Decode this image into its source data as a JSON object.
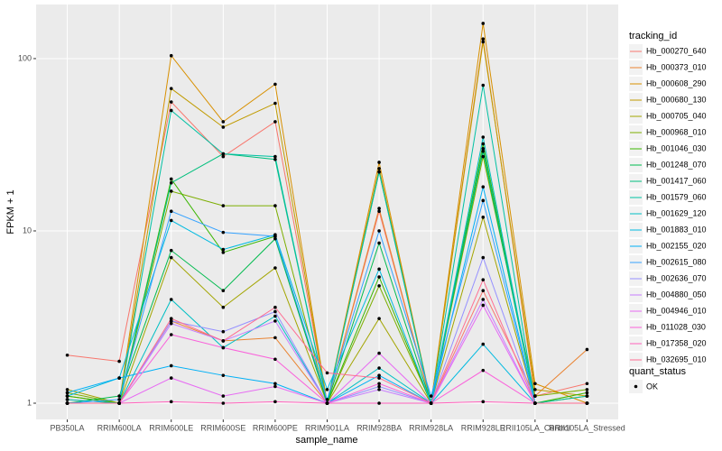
{
  "chart_data": {
    "type": "line",
    "x_label": "sample_name",
    "y_label": "FPKM + 1",
    "log_y": true,
    "grid": true,
    "legend_title": "tracking_id",
    "point_color": "#000000",
    "point_legend": {
      "title": "quant_status",
      "label": "OK"
    },
    "categories": [
      "PB350LA",
      "RRIM600LA",
      "RRIM600LE",
      "RRIM600SE",
      "RRIM600PE",
      "RRIM901LA",
      "RRIM928BA",
      "RRIM928LA",
      "RRIM928LE",
      "RRII105LA_Control",
      "RRII105LA_Stressed"
    ],
    "ylim": [
      0.805,
      206
    ],
    "yticks": [
      1,
      10,
      100
    ],
    "series": [
      {
        "name": "Hb_000270_640",
        "color": "#F8766D",
        "values": [
          1.9,
          1.75,
          56,
          27,
          43,
          1.0,
          13,
          1.0,
          4.5,
          1.1,
          1.3
        ]
      },
      {
        "name": "Hb_000373_010",
        "color": "#EA8331",
        "values": [
          1.05,
          1.0,
          3.0,
          2.3,
          2.4,
          1.0,
          13.5,
          1.0,
          130,
          1.1,
          2.05
        ]
      },
      {
        "name": "Hb_000608_290",
        "color": "#D89000",
        "values": [
          1.0,
          1.0,
          104,
          43,
          71,
          1.0,
          25,
          1.0,
          160,
          1.3,
          1.0
        ]
      },
      {
        "name": "Hb_000680_130",
        "color": "#C09B00",
        "values": [
          1.1,
          1.0,
          67,
          40,
          55,
          1.0,
          23,
          1.0,
          125,
          1.2,
          1.1
        ]
      },
      {
        "name": "Hb_000705_040",
        "color": "#A3A500",
        "values": [
          1.2,
          1.0,
          7.0,
          3.6,
          6.1,
          1.0,
          3.1,
          1.0,
          12,
          1.0,
          1.1
        ]
      },
      {
        "name": "Hb_000968_010",
        "color": "#7CAE00",
        "values": [
          1.15,
          1.0,
          17,
          14,
          14,
          1.0,
          4.8,
          1.0,
          27,
          1.1,
          1.2
        ]
      },
      {
        "name": "Hb_001046_030",
        "color": "#39B600",
        "values": [
          1.1,
          1.0,
          20,
          7.5,
          9.3,
          1.0,
          5.4,
          1.0,
          32,
          1.0,
          1.15
        ]
      },
      {
        "name": "Hb_001248_070",
        "color": "#00BB4E",
        "values": [
          1.0,
          1.1,
          7.7,
          4.5,
          9.0,
          1.0,
          8.5,
          1.0,
          29,
          1.0,
          1.0
        ]
      },
      {
        "name": "Hb_001417_060",
        "color": "#00BF7D",
        "values": [
          1.0,
          1.0,
          19,
          28,
          26,
          1.0,
          22,
          1.0,
          30,
          1.0,
          1.0
        ]
      },
      {
        "name": "Hb_001579_060",
        "color": "#00C1A3",
        "values": [
          1.0,
          1.0,
          50,
          28,
          27,
          1.0,
          22,
          1.0,
          70,
          1.0,
          1.1
        ]
      },
      {
        "name": "Hb_001629_120",
        "color": "#00BFC4",
        "values": [
          1.05,
          1.0,
          4.0,
          2.1,
          3.2,
          1.0,
          1.6,
          1.0,
          35,
          1.0,
          1.0
        ]
      },
      {
        "name": "Hb_001883_010",
        "color": "#00BAE0",
        "values": [
          1.1,
          1.4,
          11.5,
          7.8,
          9.5,
          1.2,
          6.0,
          1.0,
          2.2,
          1.0,
          1.0
        ]
      },
      {
        "name": "Hb_002155_020",
        "color": "#00B0F6",
        "values": [
          1.15,
          1.4,
          1.65,
          1.45,
          1.3,
          1.0,
          1.45,
          1.0,
          18,
          1.0,
          1.0
        ]
      },
      {
        "name": "Hb_002615_080",
        "color": "#35A2FF",
        "values": [
          1.0,
          1.05,
          13,
          9.8,
          9.3,
          1.05,
          10,
          1.1,
          15,
          1.0,
          1.0
        ]
      },
      {
        "name": "Hb_002636_070",
        "color": "#9590FF",
        "values": [
          1.0,
          1.0,
          3.0,
          2.6,
          3.4,
          1.0,
          1.25,
          1.0,
          7.0,
          1.0,
          1.0
        ]
      },
      {
        "name": "Hb_004880_050",
        "color": "#C77CFF",
        "values": [
          1.0,
          1.0,
          2.9,
          2.3,
          3.0,
          1.0,
          1.2,
          1.0,
          4.0,
          1.0,
          1.0
        ]
      },
      {
        "name": "Hb_004946_010",
        "color": "#E76BF3",
        "values": [
          1.0,
          1.0,
          1.4,
          1.1,
          1.25,
          1.0,
          1.95,
          1.0,
          3.7,
          1.0,
          1.0
        ]
      },
      {
        "name": "Hb_011028_030",
        "color": "#FA62DB",
        "values": [
          1.0,
          1.0,
          2.5,
          2.1,
          1.8,
          1.0,
          1.3,
          1.0,
          1.55,
          1.0,
          1.0
        ]
      },
      {
        "name": "Hb_017358_020",
        "color": "#FF62BC",
        "values": [
          1.0,
          1.0,
          1.02,
          1.0,
          1.02,
          1.0,
          1.0,
          1.0,
          1.02,
          1.0,
          1.0
        ]
      },
      {
        "name": "Hb_032695_010",
        "color": "#FF6C91",
        "values": [
          1.0,
          1.0,
          3.1,
          2.3,
          3.6,
          1.5,
          1.4,
          1.0,
          5.2,
          1.0,
          1.0
        ]
      }
    ]
  }
}
